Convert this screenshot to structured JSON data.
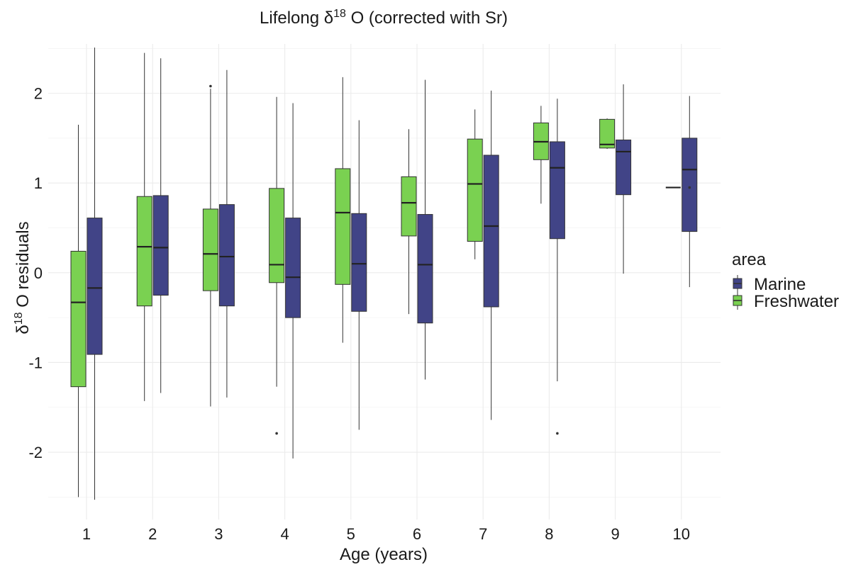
{
  "chart_data": {
    "type": "boxplot",
    "title_main": "Lifelong δ",
    "title_sup": "18",
    "title_rest": " O (corrected with Sr)",
    "xlabel": "Age (years)",
    "ylabel_main": "δ",
    "ylabel_sup": "18",
    "ylabel_rest": " O residuals",
    "categories": [
      "1",
      "2",
      "3",
      "4",
      "5",
      "6",
      "7",
      "8",
      "9",
      "10"
    ],
    "ylim": [
      -2.75,
      2.55
    ],
    "y_ticks": [
      -2,
      -1,
      0,
      1,
      2
    ],
    "y_tick_labels": [
      "-2",
      "-1",
      "0",
      "1",
      "2"
    ],
    "grid": true,
    "legend": {
      "title": "area",
      "placement": "right",
      "entries": [
        "Marine",
        "Freshwater"
      ]
    },
    "series": [
      {
        "name": "Freshwater",
        "color": "#7ad151",
        "boxes": [
          {
            "category": "1",
            "min": -2.5,
            "q1": -1.27,
            "median": -0.33,
            "q3": 0.24,
            "max": 1.65,
            "outliers": []
          },
          {
            "category": "2",
            "min": -1.43,
            "q1": -0.37,
            "median": 0.29,
            "q3": 0.85,
            "max": 2.45,
            "outliers": []
          },
          {
            "category": "3",
            "min": -1.49,
            "q1": -0.2,
            "median": 0.21,
            "q3": 0.71,
            "max": 2.05,
            "outliers": [
              2.08
            ]
          },
          {
            "category": "4",
            "min": -1.27,
            "q1": -0.11,
            "median": 0.09,
            "q3": 0.94,
            "max": 1.96,
            "outliers": [
              -1.79
            ]
          },
          {
            "category": "5",
            "min": -0.78,
            "q1": -0.13,
            "median": 0.67,
            "q3": 1.16,
            "max": 2.18,
            "outliers": []
          },
          {
            "category": "6",
            "min": -0.46,
            "q1": 0.41,
            "median": 0.78,
            "q3": 1.07,
            "max": 1.6,
            "outliers": []
          },
          {
            "category": "7",
            "min": 0.15,
            "q1": 0.35,
            "median": 0.99,
            "q3": 1.49,
            "max": 1.82,
            "outliers": []
          },
          {
            "category": "8",
            "min": 0.77,
            "q1": 1.26,
            "median": 1.46,
            "q3": 1.67,
            "max": 1.86,
            "outliers": []
          },
          {
            "category": "9",
            "min": 1.38,
            "q1": 1.39,
            "median": 1.43,
            "q3": 1.71,
            "max": 1.72,
            "outliers": []
          },
          {
            "category": "10",
            "min": null,
            "q1": null,
            "median": null,
            "q3": null,
            "max": null,
            "outliers": []
          }
        ]
      },
      {
        "name": "Marine",
        "color": "#414487",
        "boxes": [
          {
            "category": "1",
            "min": -2.53,
            "q1": -0.91,
            "median": -0.17,
            "q3": 0.61,
            "max": 2.51,
            "outliers": []
          },
          {
            "category": "2",
            "min": -1.34,
            "q1": -0.25,
            "median": 0.28,
            "q3": 0.86,
            "max": 2.39,
            "outliers": []
          },
          {
            "category": "3",
            "min": -1.39,
            "q1": -0.37,
            "median": 0.18,
            "q3": 0.76,
            "max": 2.26,
            "outliers": []
          },
          {
            "category": "4",
            "min": -2.07,
            "q1": -0.5,
            "median": -0.05,
            "q3": 0.61,
            "max": 1.89,
            "outliers": []
          },
          {
            "category": "5",
            "min": -1.75,
            "q1": -0.43,
            "median": 0.1,
            "q3": 0.66,
            "max": 1.7,
            "outliers": []
          },
          {
            "category": "6",
            "min": -1.19,
            "q1": -0.56,
            "median": 0.09,
            "q3": 0.65,
            "max": 2.15,
            "outliers": []
          },
          {
            "category": "7",
            "min": -1.64,
            "q1": -0.38,
            "median": 0.52,
            "q3": 1.31,
            "max": 2.03,
            "outliers": []
          },
          {
            "category": "8",
            "min": -1.21,
            "q1": 0.38,
            "median": 1.17,
            "q3": 1.46,
            "max": 1.94,
            "outliers": [
              -1.79
            ]
          },
          {
            "category": "9",
            "min": -0.01,
            "q1": 0.87,
            "median": 1.35,
            "q3": 1.48,
            "max": 2.1,
            "outliers": []
          },
          {
            "category": "10",
            "min": -0.16,
            "q1": 0.46,
            "median": 1.15,
            "q3": 1.5,
            "max": 1.97,
            "outliers": [
              0.95
            ]
          }
        ]
      }
    ]
  }
}
